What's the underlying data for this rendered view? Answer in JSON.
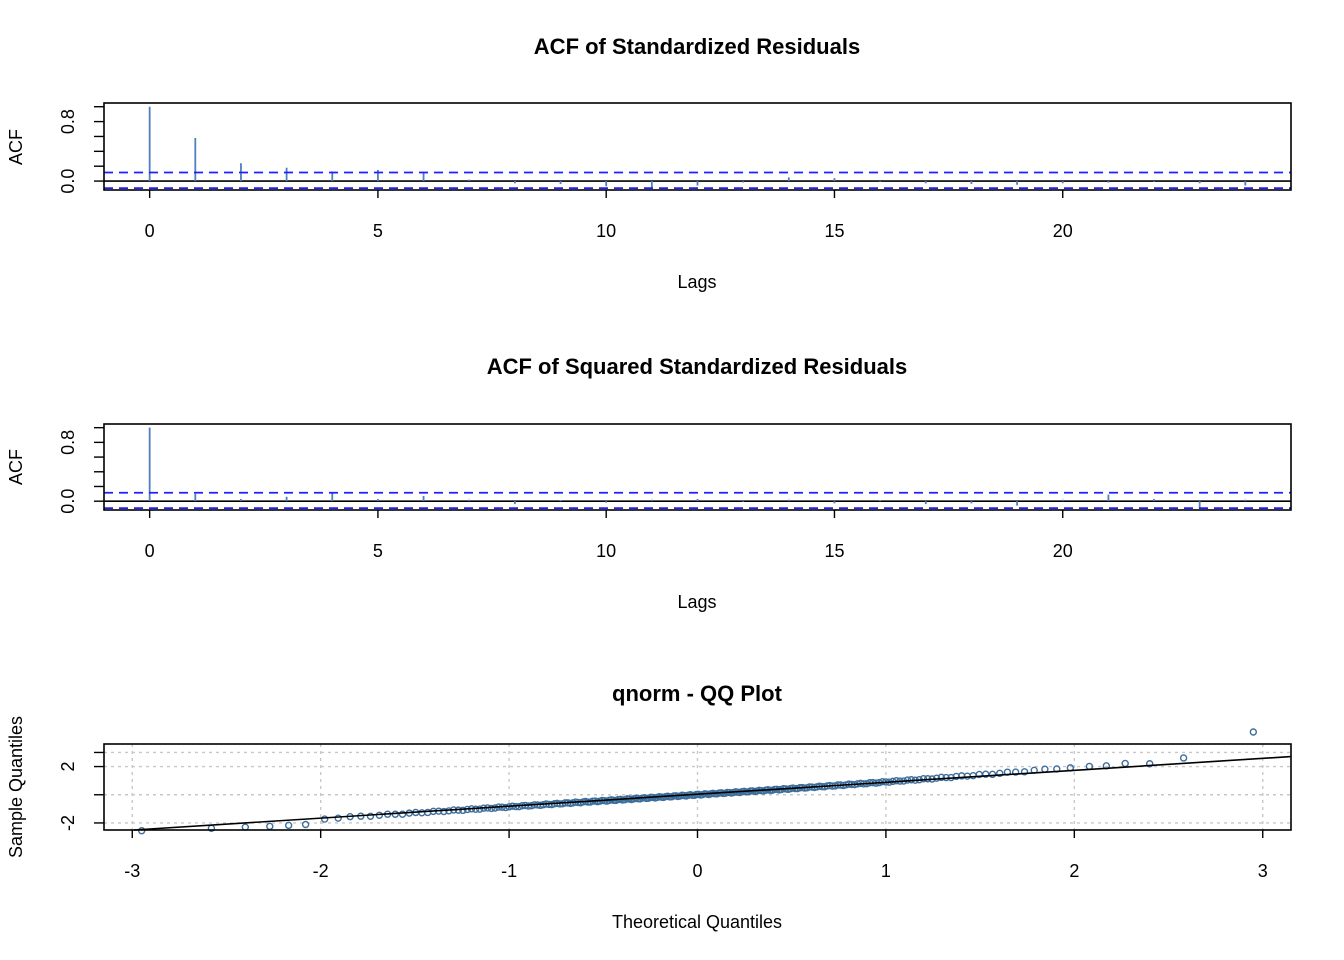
{
  "chart_data": [
    {
      "type": "bar",
      "title": "ACF of Standardized Residuals",
      "xlabel": "Lags",
      "ylabel": "ACF",
      "xlim": [
        -1,
        25
      ],
      "ylim": [
        -0.12,
        1.05
      ],
      "x_ticks": [
        "0",
        "5",
        "10",
        "15",
        "20"
      ],
      "y_ticks": [
        "0.0",
        "0.8"
      ],
      "conf_band": [
        0.115,
        -0.095
      ],
      "lags": [
        0,
        1,
        2,
        3,
        4,
        5,
        6,
        7,
        8,
        9,
        10,
        11,
        12,
        13,
        14,
        15,
        16,
        17,
        18,
        19,
        20,
        21,
        22,
        23,
        24
      ],
      "values": [
        1.0,
        0.58,
        0.24,
        0.18,
        0.13,
        0.15,
        0.11,
        0.02,
        -0.03,
        -0.04,
        -0.07,
        -0.1,
        -0.06,
        -0.02,
        0.05,
        0.04,
        -0.01,
        -0.03,
        -0.04,
        -0.05,
        -0.03,
        -0.02,
        -0.01,
        -0.03,
        -0.06
      ],
      "colors": {
        "bars": "#4f7fbf",
        "band": "#1f1fff",
        "zero": "#000000"
      }
    },
    {
      "type": "bar",
      "title": "ACF of Squared Standardized Residuals",
      "xlabel": "Lags",
      "ylabel": "ACF",
      "xlim": [
        -1,
        25
      ],
      "ylim": [
        -0.12,
        1.05
      ],
      "x_ticks": [
        "0",
        "5",
        "10",
        "15",
        "20"
      ],
      "y_ticks": [
        "0.0",
        "0.8"
      ],
      "conf_band": [
        0.115,
        -0.095
      ],
      "lags": [
        0,
        1,
        2,
        3,
        4,
        5,
        6,
        7,
        8,
        9,
        10,
        11,
        12,
        13,
        14,
        15,
        16,
        17,
        18,
        19,
        20,
        21,
        22,
        23,
        24
      ],
      "values": [
        1.0,
        0.1,
        0.03,
        0.06,
        0.12,
        0.03,
        0.07,
        0.02,
        -0.04,
        0.01,
        -0.02,
        0.02,
        0.03,
        -0.01,
        0.02,
        -0.03,
        0.01,
        -0.04,
        -0.03,
        -0.06,
        0.02,
        0.09,
        0.03,
        -0.1,
        0.02
      ],
      "colors": {
        "bars": "#4f7fbf",
        "band": "#1f1fff",
        "zero": "#000000"
      }
    },
    {
      "type": "scatter",
      "title": "qnorm - QQ Plot",
      "xlabel": "Theoretical Quantiles",
      "ylabel": "Sample Quantiles",
      "xlim": [
        -3.15,
        3.15
      ],
      "ylim": [
        -2.5,
        3.6
      ],
      "x_ticks": [
        "-3",
        "-2",
        "-1",
        "0",
        "1",
        "2",
        "3"
      ],
      "y_ticks": [
        "-2",
        "2"
      ],
      "y_tick_values": [
        -2,
        2
      ],
      "grid_x": [
        -3,
        -2,
        -1,
        0,
        1,
        2,
        3
      ],
      "grid_y": [
        -2,
        0,
        2
      ],
      "qq_line": {
        "intercept": 0.0,
        "slope": 0.86
      },
      "n_points": 230,
      "outlier_points": [
        {
          "x": -2.95,
          "y": -2.55
        },
        {
          "x": -2.58,
          "y": -2.38
        },
        {
          "x": -2.4,
          "y": -2.3
        },
        {
          "x": -2.27,
          "y": -2.24
        },
        {
          "x": -2.17,
          "y": -2.17
        },
        {
          "x": -2.08,
          "y": -2.11
        },
        {
          "x": 2.08,
          "y": 2.01
        },
        {
          "x": 2.17,
          "y": 2.05
        },
        {
          "x": 2.27,
          "y": 2.22
        },
        {
          "x": 2.4,
          "y": 2.2
        },
        {
          "x": 2.58,
          "y": 2.61
        },
        {
          "x": 2.95,
          "y": 4.5
        }
      ],
      "colors": {
        "points": "#3d6e9c",
        "line": "#000000",
        "grid": "#c8c8c8"
      }
    }
  ]
}
